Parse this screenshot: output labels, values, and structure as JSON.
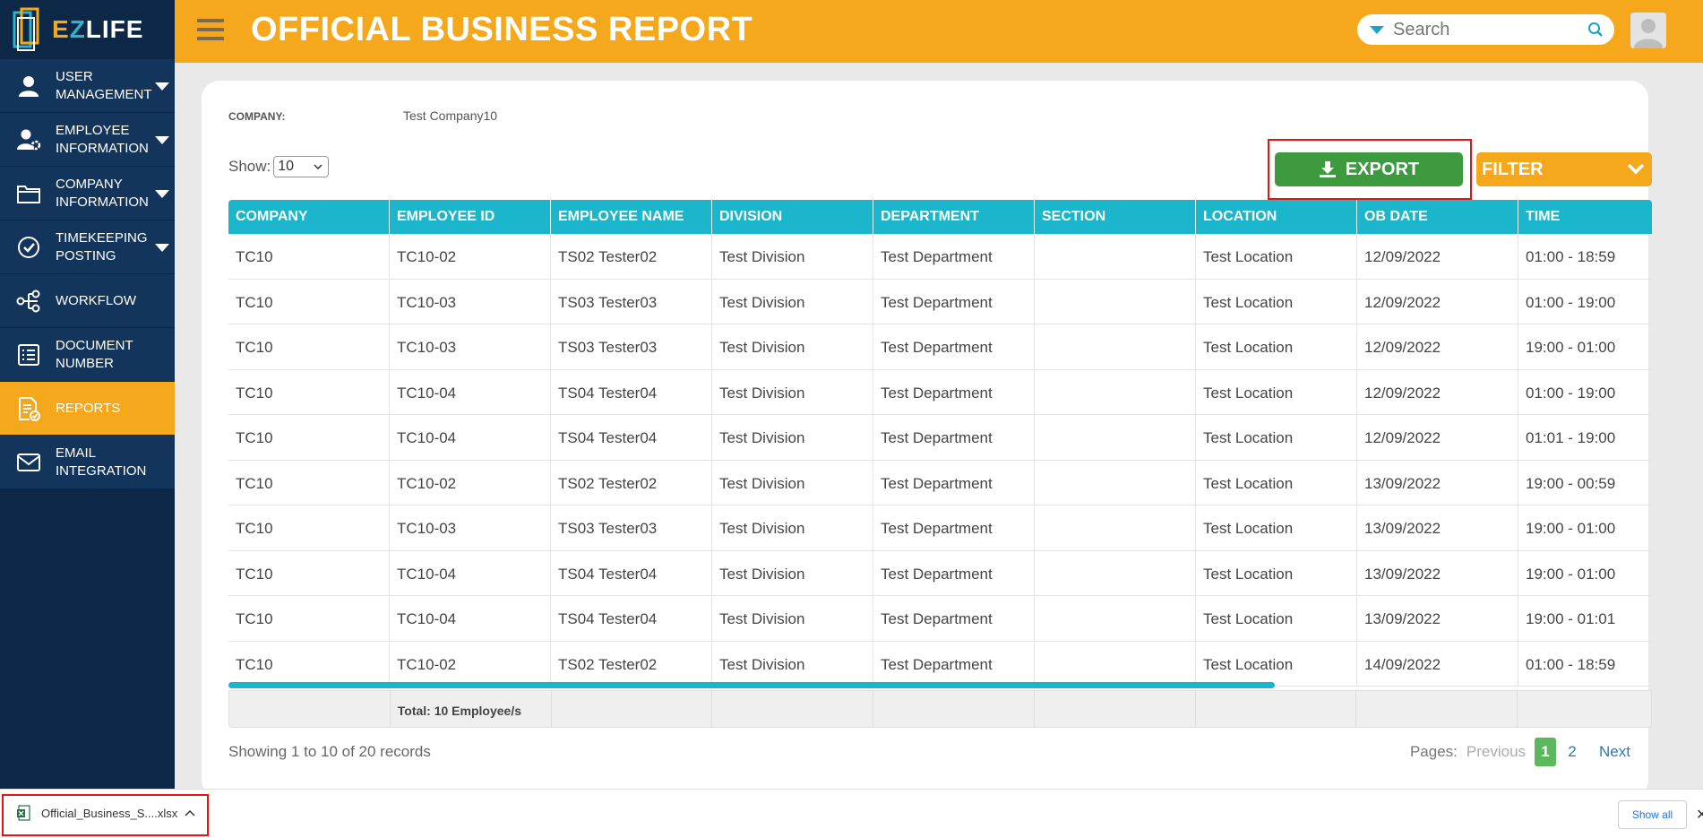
{
  "brand": {
    "logo_e": "E",
    "logo_z": "Z",
    "logo_rest": "LIFE"
  },
  "sidebar": {
    "items": [
      {
        "label_line1": "USER",
        "label_line2": "MANAGEMENT",
        "icon": "user-icon",
        "caret": true
      },
      {
        "label_line1": "EMPLOYEE",
        "label_line2": "INFORMATION",
        "icon": "user-gear-icon",
        "caret": true
      },
      {
        "label_line1": "COMPANY",
        "label_line2": "INFORMATION",
        "icon": "folder-icon",
        "caret": true
      },
      {
        "label_line1": "TIMEKEEPING",
        "label_line2": "POSTING",
        "icon": "check-circle-icon",
        "caret": true
      },
      {
        "label_line1": "WORKFLOW",
        "label_line2": "",
        "icon": "share-icon",
        "caret": false
      },
      {
        "label_line1": "DOCUMENT",
        "label_line2": "NUMBER",
        "icon": "list-icon",
        "caret": false
      },
      {
        "label_line1": "REPORTS",
        "label_line2": "",
        "icon": "report-icon",
        "caret": false,
        "active": true
      },
      {
        "label_line1": "EMAIL",
        "label_line2": "INTEGRATION",
        "icon": "envelope-icon",
        "caret": false
      }
    ]
  },
  "header": {
    "title": "OFFICIAL BUSINESS REPORT",
    "search_placeholder": "Search",
    "accent_color": "#f6a81c"
  },
  "report": {
    "company_label": "COMPANY:",
    "company_value": "Test Company10",
    "show_label": "Show:",
    "show_value": "10",
    "export_label": "EXPORT",
    "filter_label": "FILTER"
  },
  "table": {
    "columns": [
      "COMPANY",
      "EMPLOYEE ID",
      "EMPLOYEE NAME",
      "DIVISION",
      "DEPARTMENT",
      "SECTION",
      "LOCATION",
      "OB DATE",
      "TIME"
    ],
    "rows": [
      [
        "TC10",
        "TC10-02",
        "TS02 Tester02",
        "Test Division",
        "Test Department",
        "",
        "Test Location",
        "12/09/2022",
        "01:00 - 18:59"
      ],
      [
        "TC10",
        "TC10-03",
        "TS03 Tester03",
        "Test Division",
        "Test Department",
        "",
        "Test Location",
        "12/09/2022",
        "01:00 - 19:00"
      ],
      [
        "TC10",
        "TC10-03",
        "TS03 Tester03",
        "Test Division",
        "Test Department",
        "",
        "Test Location",
        "12/09/2022",
        "19:00 - 01:00"
      ],
      [
        "TC10",
        "TC10-04",
        "TS04 Tester04",
        "Test Division",
        "Test Department",
        "",
        "Test Location",
        "12/09/2022",
        "01:00 - 19:00"
      ],
      [
        "TC10",
        "TC10-04",
        "TS04 Tester04",
        "Test Division",
        "Test Department",
        "",
        "Test Location",
        "12/09/2022",
        "01:01 - 19:00"
      ],
      [
        "TC10",
        "TC10-02",
        "TS02 Tester02",
        "Test Division",
        "Test Department",
        "",
        "Test Location",
        "13/09/2022",
        "19:00 - 00:59"
      ],
      [
        "TC10",
        "TC10-03",
        "TS03 Tester03",
        "Test Division",
        "Test Department",
        "",
        "Test Location",
        "13/09/2022",
        "19:00 - 01:00"
      ],
      [
        "TC10",
        "TC10-04",
        "TS04 Tester04",
        "Test Division",
        "Test Department",
        "",
        "Test Location",
        "13/09/2022",
        "19:00 - 01:00"
      ],
      [
        "TC10",
        "TC10-04",
        "TS04 Tester04",
        "Test Division",
        "Test Department",
        "",
        "Test Location",
        "13/09/2022",
        "19:00 - 01:01"
      ],
      [
        "TC10",
        "TC10-02",
        "TS02 Tester02",
        "Test Division",
        "Test Department",
        "",
        "Test Location",
        "14/09/2022",
        "01:00 - 18:59"
      ]
    ],
    "footer_total": "Total: 10 Employee/s",
    "header_color": "#1bb6cc"
  },
  "pagination": {
    "showing_text": "Showing 1 to 10 of 20 records",
    "pages_label": "Pages:",
    "previous_label": "Previous",
    "pages": [
      "1",
      "2"
    ],
    "current_page": "1",
    "next_label": "Next"
  },
  "download_bar": {
    "filename": "Official_Business_S....xlsx",
    "show_all_label": "Show all"
  }
}
